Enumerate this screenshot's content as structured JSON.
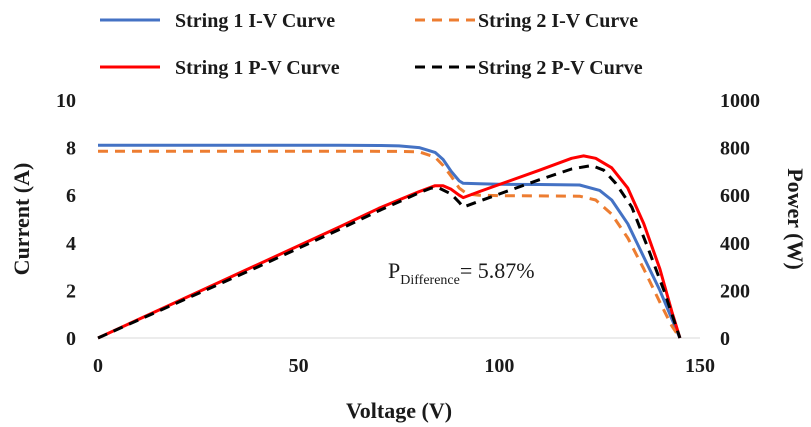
{
  "chart_data": {
    "type": "line",
    "xlabel": "Voltage (V)",
    "ylabel": "Current (A)",
    "y2label": "Power (W)",
    "xlim": [
      0,
      150
    ],
    "ylim": [
      0,
      10
    ],
    "y2lim": [
      0,
      1000
    ],
    "xticks": [
      "0",
      "50",
      "100",
      "150"
    ],
    "yticks": [
      "0",
      "2",
      "4",
      "6",
      "8",
      "10"
    ],
    "y2ticks": [
      "0",
      "200",
      "400",
      "600",
      "800",
      "1000"
    ],
    "grid": false,
    "legend_placement": "top",
    "annotation": {
      "prefix": "P",
      "subscript": "Difference",
      "suffix": "= 5.87%"
    },
    "series": [
      {
        "name": "String 1 I-V Curve",
        "axis": "left",
        "color": "#4472C4",
        "dash": "solid",
        "x": [
          0,
          20,
          40,
          60,
          70,
          75,
          80,
          84,
          86,
          88,
          90,
          91,
          95,
          100,
          110,
          120,
          125,
          128,
          132,
          136,
          140,
          143,
          145
        ],
        "y": [
          8.1,
          8.1,
          8.1,
          8.1,
          8.09,
          8.07,
          8.0,
          7.8,
          7.5,
          7.0,
          6.6,
          6.5,
          6.48,
          6.46,
          6.45,
          6.43,
          6.2,
          5.8,
          4.8,
          3.4,
          2.0,
          0.8,
          0
        ]
      },
      {
        "name": "String 2 I-V Curve",
        "axis": "left",
        "color": "#ED7D31",
        "dash": "dashed",
        "x": [
          0,
          20,
          40,
          60,
          75,
          80,
          84,
          86,
          88,
          90,
          92,
          95,
          100,
          110,
          120,
          124,
          128,
          132,
          136,
          140,
          143,
          145
        ],
        "y": [
          7.85,
          7.85,
          7.85,
          7.85,
          7.84,
          7.82,
          7.6,
          7.25,
          6.8,
          6.3,
          6.05,
          6.0,
          5.98,
          5.97,
          5.96,
          5.8,
          5.2,
          4.2,
          2.9,
          1.5,
          0.5,
          0
        ]
      },
      {
        "name": "String 1 P-V Curve",
        "axis": "right",
        "color": "#FF0000",
        "dash": "solid",
        "x": [
          0,
          20,
          40,
          60,
          70,
          80,
          84,
          86,
          88,
          90,
          91,
          95,
          100,
          110,
          118,
          121,
          124,
          128,
          132,
          136,
          140,
          143,
          145
        ],
        "y": [
          0,
          155,
          310,
          465,
          545,
          615,
          640,
          640,
          625,
          600,
          590,
          615,
          645,
          705,
          755,
          765,
          755,
          715,
          630,
          480,
          290,
          110,
          0
        ]
      },
      {
        "name": "String 2 P-V Curve",
        "axis": "right",
        "color": "#000000",
        "dash": "dashed",
        "x": [
          0,
          20,
          40,
          60,
          70,
          80,
          83,
          85,
          88,
          90,
          91,
          95,
          100,
          110,
          118,
          123,
          126,
          129,
          133,
          137,
          141,
          145
        ],
        "y": [
          0,
          150,
          300,
          455,
          535,
          610,
          630,
          630,
          605,
          570,
          550,
          575,
          605,
          665,
          710,
          725,
          705,
          650,
          550,
          380,
          200,
          0
        ]
      }
    ]
  }
}
